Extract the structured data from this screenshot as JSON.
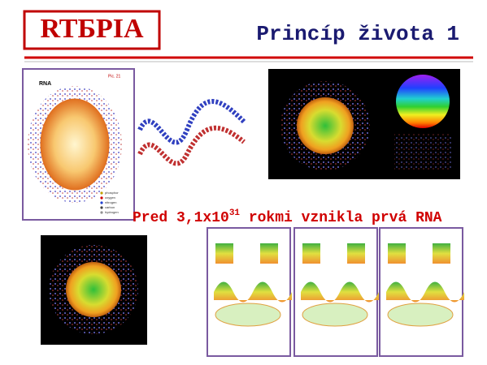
{
  "header": {
    "logo": "RTБPIA",
    "title": "Princíp života 1"
  },
  "caption": {
    "before": "Pred 3,1x10",
    "superscript": "31",
    "after": " rokmi vznikla prvá RNA"
  },
  "figure": {
    "title": "RNA",
    "number": "Pic. 21",
    "legend": [
      "phosphor",
      "oxygen",
      "nitrogen",
      "carbon",
      "hydrogen"
    ]
  }
}
